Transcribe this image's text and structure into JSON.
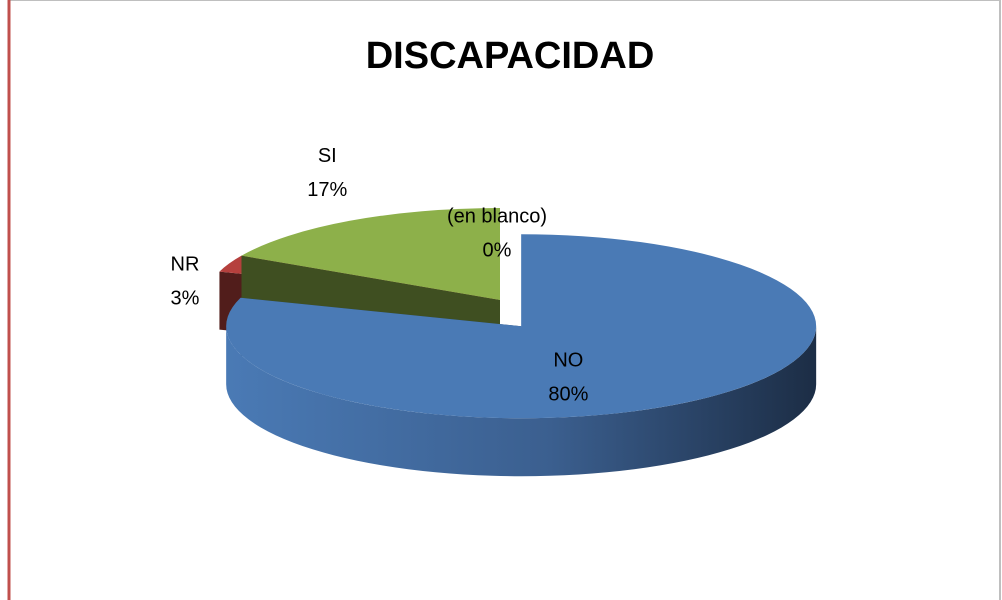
{
  "chart_data": {
    "type": "pie",
    "title": "DISCAPACIDAD",
    "categories": [
      "NO",
      "NR",
      "SI",
      "(en blanco)"
    ],
    "values": [
      80,
      3,
      17,
      0
    ],
    "value_labels": [
      "80%",
      "3%",
      "17%",
      "0%"
    ],
    "colors": [
      "#4a7ab5",
      "#b5403d",
      "#8db04a",
      "#7f7f7f"
    ]
  }
}
